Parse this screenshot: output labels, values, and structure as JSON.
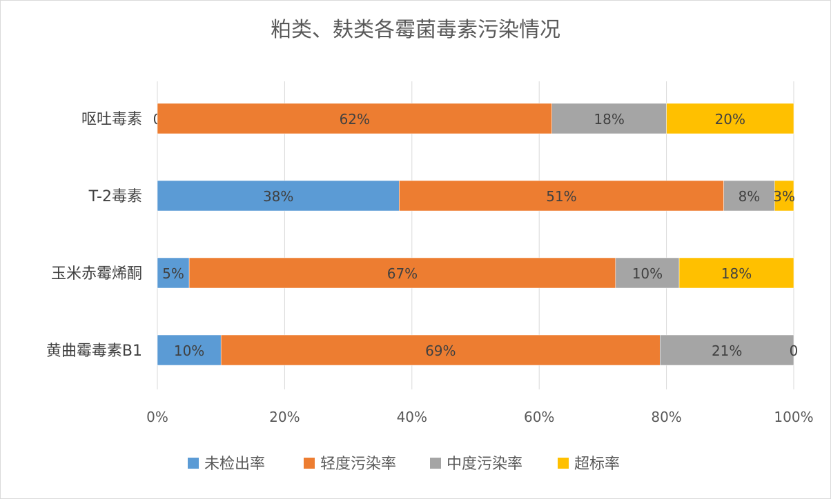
{
  "chart_data": {
    "type": "bar",
    "orientation": "horizontal",
    "stacked": "percent",
    "title": "粕类、麸类各霉菌毒素污染情况",
    "categories": [
      "呕吐毒素",
      "T-2毒素",
      "玉米赤霉烯酮",
      "黄曲霉毒素B1"
    ],
    "series": [
      {
        "name": "未检出率",
        "color": "#5b9bd5",
        "values": [
          0,
          38,
          5,
          10
        ],
        "labels": [
          "0",
          "38%",
          "5%",
          "10%"
        ]
      },
      {
        "name": "轻度污染率",
        "color": "#ed7d31",
        "values": [
          62,
          51,
          67,
          69
        ],
        "labels": [
          "62%",
          "51%",
          "67%",
          "69%"
        ]
      },
      {
        "name": "中度污染率",
        "color": "#a5a5a5",
        "values": [
          18,
          8,
          10,
          21
        ],
        "labels": [
          "18%",
          "8%",
          "10%",
          "21%"
        ]
      },
      {
        "name": "超标率",
        "color": "#ffc000",
        "values": [
          20,
          3,
          18,
          0
        ],
        "labels": [
          "20%",
          "3%",
          "18%",
          "0"
        ]
      }
    ],
    "x_ticks": [
      "0%",
      "20%",
      "40%",
      "60%",
      "80%",
      "100%"
    ],
    "xlim": [
      0,
      100
    ],
    "grid": true,
    "legend_position": "bottom"
  }
}
